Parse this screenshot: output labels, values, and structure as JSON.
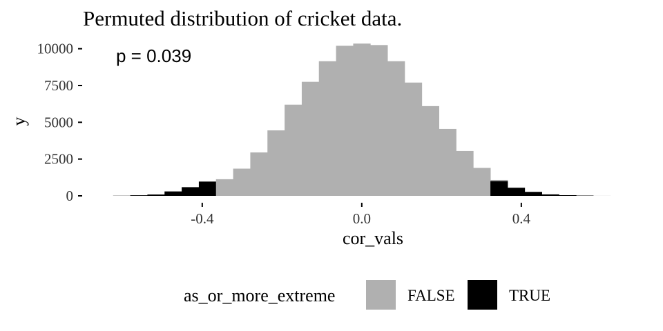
{
  "chart_data": {
    "type": "bar",
    "title": "Permuted distribution of cricket data.",
    "annotation": "p = 0.039",
    "xlabel": "cor_vals",
    "ylabel": "y",
    "xlim": [
      -0.63,
      0.66
    ],
    "ylim": [
      0,
      10500
    ],
    "x_ticks": [
      {
        "value": -0.4,
        "label": "-0.4"
      },
      {
        "value": 0.0,
        "label": "0.0"
      },
      {
        "value": 0.4,
        "label": "0.4"
      }
    ],
    "y_ticks": [
      {
        "value": 0,
        "label": "0"
      },
      {
        "value": 2500,
        "label": "2500"
      },
      {
        "value": 5000,
        "label": "5000"
      },
      {
        "value": 7500,
        "label": "7500"
      },
      {
        "value": 10000,
        "label": "10000"
      }
    ],
    "bin_width": 0.043,
    "bins": [
      {
        "x": -0.602,
        "y": 10,
        "extreme": "TRUE"
      },
      {
        "x": -0.559,
        "y": 40,
        "extreme": "TRUE"
      },
      {
        "x": -0.516,
        "y": 90,
        "extreme": "TRUE"
      },
      {
        "x": -0.473,
        "y": 300,
        "extreme": "TRUE"
      },
      {
        "x": -0.43,
        "y": 590,
        "extreme": "TRUE"
      },
      {
        "x": -0.387,
        "y": 970,
        "extreme": "TRUE"
      },
      {
        "x": -0.344,
        "y": 1130,
        "extreme": "FALSE"
      },
      {
        "x": -0.301,
        "y": 1850,
        "extreme": "FALSE"
      },
      {
        "x": -0.258,
        "y": 2950,
        "extreme": "FALSE"
      },
      {
        "x": -0.215,
        "y": 4450,
        "extreme": "FALSE"
      },
      {
        "x": -0.172,
        "y": 6200,
        "extreme": "FALSE"
      },
      {
        "x": -0.129,
        "y": 7750,
        "extreme": "FALSE"
      },
      {
        "x": -0.086,
        "y": 9150,
        "extreme": "FALSE"
      },
      {
        "x": -0.043,
        "y": 10200,
        "extreme": "FALSE"
      },
      {
        "x": 0.0,
        "y": 10350,
        "extreme": "FALSE"
      },
      {
        "x": 0.043,
        "y": 10250,
        "extreme": "FALSE"
      },
      {
        "x": 0.086,
        "y": 9150,
        "extreme": "FALSE"
      },
      {
        "x": 0.129,
        "y": 7700,
        "extreme": "FALSE"
      },
      {
        "x": 0.172,
        "y": 6100,
        "extreme": "FALSE"
      },
      {
        "x": 0.215,
        "y": 4550,
        "extreme": "FALSE"
      },
      {
        "x": 0.258,
        "y": 3050,
        "extreme": "FALSE"
      },
      {
        "x": 0.301,
        "y": 1900,
        "extreme": "FALSE"
      },
      {
        "x": 0.344,
        "y": 1080,
        "extreme": "FALSE"
      },
      {
        "x": 0.344,
        "y": 1000,
        "extreme": "TRUE"
      },
      {
        "x": 0.387,
        "y": 550,
        "extreme": "TRUE"
      },
      {
        "x": 0.43,
        "y": 270,
        "extreme": "TRUE"
      },
      {
        "x": 0.473,
        "y": 100,
        "extreme": "TRUE"
      },
      {
        "x": 0.516,
        "y": 45,
        "extreme": "TRUE"
      },
      {
        "x": 0.559,
        "y": 20,
        "extreme": "TRUE"
      },
      {
        "x": 0.602,
        "y": 5,
        "extreme": "FALSE"
      }
    ],
    "legend": {
      "title": "as_or_more_extreme",
      "placement": "bottom",
      "entries": [
        {
          "label": "FALSE",
          "color": "#b0b0b0"
        },
        {
          "label": "TRUE",
          "color": "#000000"
        }
      ]
    },
    "colors": {
      "FALSE": "#b0b0b0",
      "TRUE": "#000000"
    },
    "grid": false
  }
}
